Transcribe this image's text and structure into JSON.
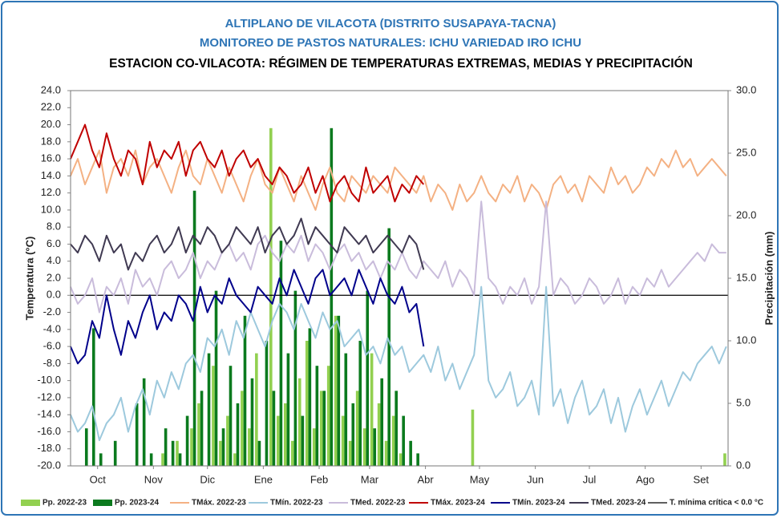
{
  "chart_data": {
    "type": "line",
    "title": "ALTIPLANO DE VILACOTA (DISTRITO SUSAPAYA-TACNA)",
    "subtitle": "MONITOREO DE PASTOS NATURALES: ICHU VARIEDAD IRO ICHU",
    "heading": "ESTACION CO-VILACOTA: RÉGIMEN DE TEMPERATURAS EXTREMAS, MEDIAS Y PRECIPITACIÓN",
    "y_label": "Temperatura (°C)",
    "y2_label": "Precipitación (mm)",
    "threshold": 0,
    "threshold_label": "T. mínima crítica < 0.0 °C",
    "threshold_color": "#000000",
    "xlim": [
      0,
      365
    ],
    "xticks": [
      {
        "value": 15,
        "label": "Oct"
      },
      {
        "value": 46,
        "label": "Nov"
      },
      {
        "value": 76,
        "label": "Dic"
      },
      {
        "value": 107,
        "label": "Ene"
      },
      {
        "value": 138,
        "label": "Feb"
      },
      {
        "value": 166,
        "label": "Mar"
      },
      {
        "value": 197,
        "label": "Abr"
      },
      {
        "value": 227,
        "label": "May"
      },
      {
        "value": 258,
        "label": "Jun"
      },
      {
        "value": 288,
        "label": "Jul"
      },
      {
        "value": 319,
        "label": "Ago"
      },
      {
        "value": 350,
        "label": "Set"
      }
    ],
    "ylim": [
      -20,
      24
    ],
    "yticks": [
      {
        "value": -20,
        "label": "-20.0"
      },
      {
        "value": -18,
        "label": "-18.0"
      },
      {
        "value": -16,
        "label": "-16.0"
      },
      {
        "value": -14,
        "label": "-14.0"
      },
      {
        "value": -12,
        "label": "-12.0"
      },
      {
        "value": -10,
        "label": "-10.0"
      },
      {
        "value": -8,
        "label": "-8.0"
      },
      {
        "value": -6,
        "label": "-6.0"
      },
      {
        "value": -4,
        "label": "-4.0"
      },
      {
        "value": -2,
        "label": "-2.0"
      },
      {
        "value": 0,
        "label": "0.0"
      },
      {
        "value": 2,
        "label": "2.0"
      },
      {
        "value": 4,
        "label": "4.0"
      },
      {
        "value": 6,
        "label": "6.0"
      },
      {
        "value": 8,
        "label": "8.0"
      },
      {
        "value": 10,
        "label": "10.0"
      },
      {
        "value": 12,
        "label": "12.0"
      },
      {
        "value": 14,
        "label": "14.0"
      },
      {
        "value": 16,
        "label": "16.0"
      },
      {
        "value": 18,
        "label": "18.0"
      },
      {
        "value": 20,
        "label": "20.0"
      },
      {
        "value": 22,
        "label": "22.0"
      },
      {
        "value": 24,
        "label": "24.0"
      }
    ],
    "y2lim": [
      0,
      30
    ],
    "y2ticks": [
      {
        "value": 0,
        "label": "0.0"
      },
      {
        "value": 5,
        "label": "5.0"
      },
      {
        "value": 10,
        "label": "10.0"
      },
      {
        "value": 15,
        "label": "15.0"
      },
      {
        "value": 20,
        "label": "20.0"
      },
      {
        "value": 25,
        "label": "25.0"
      },
      {
        "value": 30,
        "label": "30.0"
      }
    ],
    "x": [
      0,
      4,
      8,
      12,
      16,
      20,
      24,
      28,
      32,
      36,
      40,
      44,
      48,
      52,
      56,
      60,
      64,
      68,
      72,
      76,
      80,
      84,
      88,
      92,
      96,
      100,
      104,
      108,
      112,
      116,
      120,
      124,
      128,
      132,
      136,
      140,
      144,
      148,
      152,
      156,
      160,
      164,
      168,
      172,
      176,
      180,
      184,
      188,
      192,
      196,
      200,
      204,
      208,
      212,
      216,
      220,
      224,
      228,
      232,
      236,
      240,
      244,
      248,
      252,
      256,
      260,
      264,
      268,
      272,
      276,
      280,
      284,
      288,
      292,
      296,
      300,
      304,
      308,
      312,
      316,
      320,
      324,
      328,
      332,
      336,
      340,
      344,
      348,
      352,
      356,
      360,
      364
    ],
    "series": [
      {
        "name": "Pp. 2022-23",
        "color": "#92d050",
        "mark": "bar",
        "axis": "y2",
        "values": [
          0,
          0,
          0,
          0,
          0,
          0,
          0,
          0,
          0,
          0,
          0,
          0,
          0,
          1,
          0,
          2,
          0,
          3,
          5,
          0,
          8,
          2,
          4,
          1,
          6,
          3,
          9,
          0,
          27,
          4,
          5,
          2,
          7,
          10,
          3,
          6,
          8,
          12,
          4,
          2,
          6,
          3,
          9,
          5,
          2,
          4,
          1,
          0,
          0,
          0,
          0,
          0,
          0,
          0,
          0,
          0,
          4.5,
          0,
          0,
          0,
          0,
          0,
          0,
          0,
          0,
          0,
          0,
          0,
          0,
          0,
          0,
          0,
          0,
          0,
          0,
          0,
          0,
          0,
          0,
          0,
          0,
          0,
          0,
          0,
          0,
          0,
          0,
          0,
          0,
          0,
          0,
          1
        ]
      },
      {
        "name": "Pp. 2023-24",
        "color": "#0b7a1e",
        "mark": "bar",
        "axis": "y2",
        "values": [
          0,
          0,
          3,
          11,
          1,
          0,
          2,
          0,
          0,
          5,
          7,
          1,
          0,
          3,
          2,
          1,
          4,
          22,
          6,
          9,
          14,
          3,
          8,
          5,
          12,
          7,
          2,
          10,
          6,
          18,
          9,
          14,
          4,
          11,
          8,
          6,
          27,
          12,
          9,
          5,
          10,
          14,
          3,
          7,
          19,
          6,
          4,
          2,
          1,
          0,
          null,
          null,
          null,
          null,
          null,
          null,
          null,
          null,
          null,
          null,
          null,
          null,
          null,
          null,
          null,
          null,
          null,
          null,
          null,
          null,
          null,
          null,
          null,
          null,
          null,
          null,
          null,
          null,
          null,
          null,
          null,
          null,
          null,
          null,
          null,
          null,
          null,
          null,
          null,
          null,
          null,
          null
        ]
      },
      {
        "name": "TMáx. 2022-23",
        "color": "#f4b183",
        "mark": "line",
        "values": [
          14,
          16,
          13,
          15,
          17,
          12,
          15,
          16,
          14,
          17,
          13,
          15,
          16,
          14,
          12,
          15,
          17,
          14,
          13,
          16,
          14,
          12,
          15,
          13,
          11,
          14,
          16,
          13,
          12,
          15,
          13,
          11,
          14,
          12,
          10,
          13,
          15,
          12,
          11,
          14,
          13,
          12,
          14,
          13,
          12,
          15,
          14,
          13,
          12,
          14,
          11,
          13,
          12,
          10,
          13,
          11,
          12,
          14,
          12,
          11,
          13,
          12,
          14,
          11,
          13,
          12,
          10,
          13,
          14,
          12,
          13,
          11,
          14,
          13,
          12,
          15,
          13,
          14,
          12,
          13,
          15,
          14,
          16,
          15,
          17,
          15,
          16,
          14,
          15,
          16,
          15,
          14
        ]
      },
      {
        "name": "TMín. 2022-23",
        "color": "#9dc9dd",
        "mark": "line",
        "values": [
          -14,
          -16,
          -15,
          -13,
          -17,
          -15,
          -14,
          -12,
          -16,
          -13,
          -11,
          -14,
          -10,
          -12,
          -9,
          -11,
          -8,
          -7,
          -9,
          -5,
          -6,
          -4,
          -7,
          -3,
          -5,
          -2,
          -4,
          -6,
          -3,
          -1,
          -2,
          -4,
          -1,
          -3,
          -5,
          -2,
          -4,
          -3,
          -6,
          -5,
          -4,
          -7,
          -6,
          -8,
          -5,
          -7,
          -6,
          -9,
          -8,
          -7,
          -9,
          -6,
          -10,
          -8,
          -11,
          -9,
          -7,
          1,
          -10,
          -12,
          -11,
          -9,
          -13,
          -12,
          -10,
          -14,
          1,
          -13,
          -11,
          -15,
          -12,
          -10,
          -14,
          -13,
          -11,
          -15,
          -12,
          -16,
          -13,
          -11,
          -14,
          -12,
          -10,
          -13,
          -11,
          -9,
          -10,
          -8,
          -7,
          -6,
          -8,
          -6
        ]
      },
      {
        "name": "TMed. 2022-23",
        "color": "#c9bcdb",
        "mark": "line",
        "values": [
          1,
          -1,
          0,
          2,
          -2,
          1,
          0,
          2,
          -1,
          3,
          1,
          2,
          0,
          3,
          4,
          2,
          3,
          5,
          2,
          4,
          3,
          5,
          6,
          4,
          5,
          3,
          6,
          7,
          5,
          4,
          6,
          5,
          7,
          4,
          6,
          5,
          3,
          5,
          6,
          4,
          5,
          3,
          4,
          2,
          4,
          3,
          5,
          3,
          2,
          4,
          3,
          2,
          4,
          1,
          3,
          2,
          0,
          11,
          2,
          1,
          -1,
          1,
          0,
          2,
          -1,
          1,
          11,
          0,
          2,
          1,
          -1,
          0,
          2,
          1,
          -1,
          0,
          2,
          -1,
          1,
          0,
          2,
          1,
          3,
          1,
          2,
          3,
          4,
          5,
          4,
          6,
          5,
          5
        ]
      },
      {
        "name": "TMáx. 2023-24",
        "color": "#c00000",
        "mark": "line",
        "values": [
          16,
          18,
          20,
          17,
          15,
          19,
          16,
          14,
          17,
          16,
          13,
          18,
          15,
          17,
          16,
          18,
          14,
          17,
          18,
          16,
          15,
          17,
          14,
          16,
          17,
          15,
          16,
          14,
          13,
          15,
          14,
          12,
          13,
          15,
          12,
          14,
          11,
          13,
          14,
          12,
          11,
          15,
          12,
          13,
          14,
          11,
          13,
          12,
          14,
          13,
          null,
          null,
          null,
          null,
          null,
          null,
          null,
          null,
          null,
          null,
          null,
          null,
          null,
          null,
          null,
          null,
          null,
          null,
          null,
          null,
          null,
          null,
          null,
          null,
          null,
          null,
          null,
          null,
          null,
          null,
          null,
          null,
          null,
          null,
          null,
          null,
          null,
          null,
          null,
          null,
          null,
          null
        ]
      },
      {
        "name": "TMín. 2023-24",
        "color": "#00008b",
        "mark": "line",
        "values": [
          -6,
          -8,
          -7,
          -3,
          -5,
          0,
          -4,
          -7,
          -3,
          -5,
          -2,
          0,
          -4,
          -2,
          -3,
          0,
          -1,
          -3,
          1,
          -2,
          0,
          -1,
          2,
          0,
          -1,
          -2,
          1,
          0,
          -1,
          2,
          0,
          3,
          1,
          -1,
          2,
          3,
          0,
          1,
          2,
          0,
          3,
          1,
          -1,
          2,
          0,
          -1,
          1,
          -2,
          -1,
          -6,
          null,
          null,
          null,
          null,
          null,
          null,
          null,
          null,
          null,
          null,
          null,
          null,
          null,
          null,
          null,
          null,
          null,
          null,
          null,
          null,
          null,
          null,
          null,
          null,
          null,
          null,
          null,
          null,
          null,
          null,
          null,
          null,
          null,
          null,
          null,
          null,
          null,
          null,
          null,
          null,
          null,
          null
        ]
      },
      {
        "name": "TMed. 2023-24",
        "color": "#403a52",
        "mark": "line",
        "values": [
          6,
          5,
          7,
          6,
          4,
          7,
          5,
          6,
          3,
          5,
          4,
          6,
          7,
          5,
          6,
          8,
          5,
          7,
          6,
          8,
          7,
          5,
          6,
          8,
          7,
          6,
          8,
          5,
          7,
          8,
          6,
          7,
          9,
          6,
          8,
          7,
          6,
          5,
          8,
          7,
          6,
          7,
          5,
          6,
          7,
          6,
          5,
          7,
          6,
          3,
          null,
          null,
          null,
          null,
          null,
          null,
          null,
          null,
          null,
          null,
          null,
          null,
          null,
          null,
          null,
          null,
          null,
          null,
          null,
          null,
          null,
          null,
          null,
          null,
          null,
          null,
          null,
          null,
          null,
          null,
          null,
          null,
          null,
          null,
          null,
          null,
          null,
          null,
          null,
          null,
          null,
          null
        ]
      }
    ]
  }
}
